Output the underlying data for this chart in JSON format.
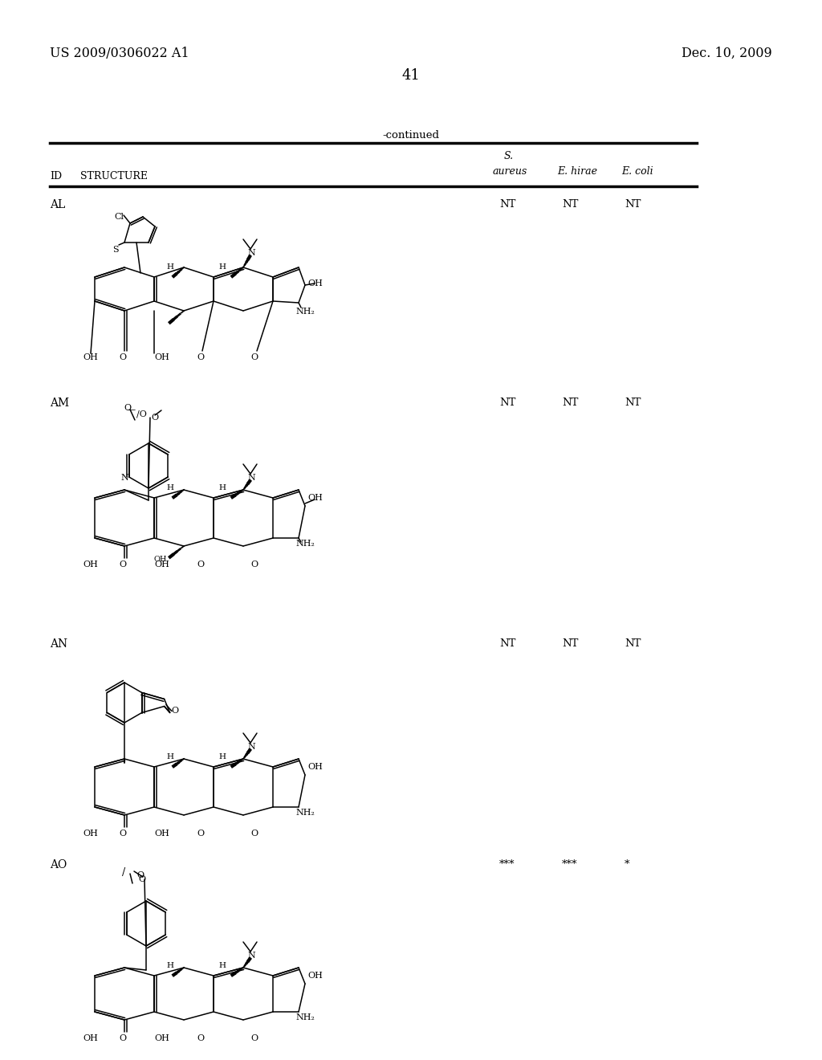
{
  "page_number": "41",
  "patent_number": "US 2009/0306022 A1",
  "date": "Dec. 10, 2009",
  "continued_label": "-continued",
  "header_row": {
    "S_label": "S.",
    "aureus": "aureus",
    "e_hirae": "E. hirae",
    "e_coli": "E. coli",
    "id_label": "ID",
    "structure_label": "STRUCTURE"
  },
  "compounds": [
    {
      "id": "AL",
      "aureus": "NT",
      "hirae": "NT",
      "coli": "NT"
    },
    {
      "id": "AM",
      "aureus": "NT",
      "hirae": "NT",
      "coli": "NT"
    },
    {
      "id": "AN",
      "aureus": "NT",
      "hirae": "NT",
      "coli": "NT"
    },
    {
      "id": "AO",
      "aureus": "***",
      "hirae": "***",
      "coli": "*"
    }
  ],
  "bg_color": "#ffffff",
  "text_color": "#000000",
  "line_color": "#000000"
}
